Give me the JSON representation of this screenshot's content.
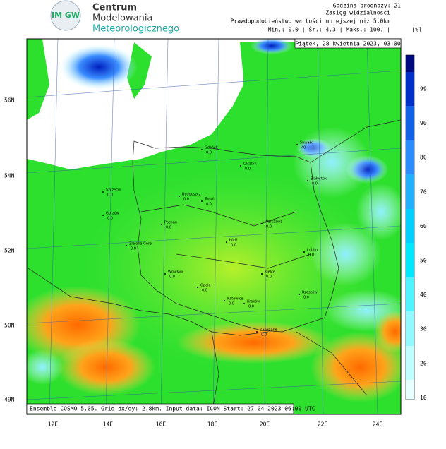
{
  "logo": {
    "mark": "IM GW",
    "line1": "Centrum",
    "line2": "Modelowania",
    "line3": "Meteorologicznego"
  },
  "header": {
    "hour": "Godzina prognozy: 21",
    "field": "Zasięg widzialności",
    "desc": "Prawdopodobieństwo wartości mniejszej niż 5.0km",
    "stats": "| Min.:    0.0 | Śr.:    4.3 | Maks.:    100. |",
    "unit": "[%]"
  },
  "date": "Piątek, 28 kwietnia 2023, 03:00",
  "footer": "Ensemble COSMO 5.05. Grid dx/dy: 2.8km. Input data: ICON Start: 27-04-2023 06:00 UTC",
  "lat_labels": [
    "56N",
    "54N",
    "52N",
    "50N",
    "49N"
  ],
  "lon_labels": [
    "12E",
    "14E",
    "16E",
    "18E",
    "20E",
    "22E",
    "24E"
  ],
  "colorbar_ticks": [
    "99",
    "90",
    "80",
    "70",
    "60",
    "50",
    "40",
    "30",
    "20",
    "10"
  ],
  "cities": [
    {
      "name": "Gdańsk",
      "value": "0.0"
    },
    {
      "name": "Olsztyn",
      "value": "0.0"
    },
    {
      "name": "Suwałki",
      "value": "40"
    },
    {
      "name": "Białystok",
      "value": "0.0"
    },
    {
      "name": "Szczecin",
      "value": "0.0"
    },
    {
      "name": "Bydgoszcz",
      "value": "0.0"
    },
    {
      "name": "Toruń",
      "value": "0.0"
    },
    {
      "name": "Gorzów",
      "value": "0.0"
    },
    {
      "name": "Poznań",
      "value": "0.0"
    },
    {
      "name": "Warszawa",
      "value": "0.0"
    },
    {
      "name": "Zielona Góra",
      "value": "0.0"
    },
    {
      "name": "Łódź",
      "value": "0.0"
    },
    {
      "name": "Lublin",
      "value": "0.0"
    },
    {
      "name": "Wrocław",
      "value": "0.0"
    },
    {
      "name": "Kielce",
      "value": "0.0"
    },
    {
      "name": "Opole",
      "value": "0.0"
    },
    {
      "name": "Katowice",
      "value": "0.0"
    },
    {
      "name": "Kraków",
      "value": "0.0"
    },
    {
      "name": "Rzeszów",
      "value": "0.0"
    },
    {
      "name": "Zakopane",
      "value": "0.0"
    }
  ]
}
